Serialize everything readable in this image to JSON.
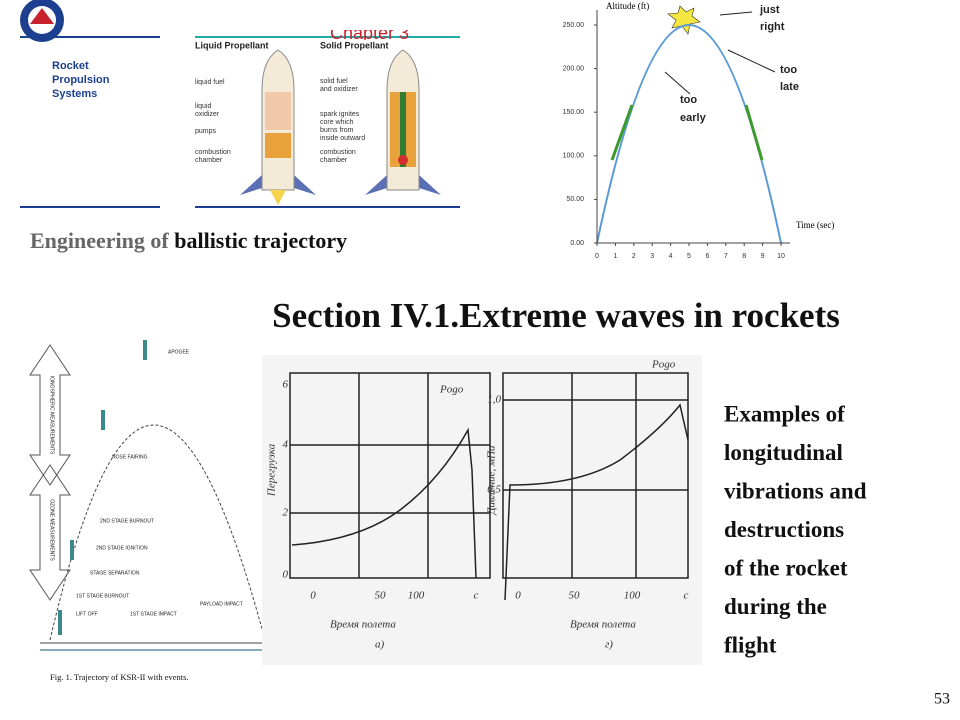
{
  "slide": {
    "caption": [
      "Engineering of",
      "ballistic trajectory"
    ],
    "heading": "Section IV.1.Extreme waves in rockets",
    "body_lines": [
      "Examples of",
      "longitudinal",
      "vibrations and",
      "destructions",
      "of the rocket",
      "during the",
      "flight"
    ],
    "page_number": "53"
  },
  "propulsion_image": {
    "title_lines": [
      "Rocket",
      "Propulsion",
      "Systems"
    ],
    "chapter": "Chapter 3",
    "liquid": {
      "title": "Liquid Propellant",
      "labels": [
        "liquid fuel",
        "liquid",
        "oxidizer",
        "pumps",
        "combustion",
        "chamber"
      ]
    },
    "solid": {
      "title": "Solid Propellant",
      "labels": [
        "solid fuel",
        "and oxidizer",
        "spark ignites",
        "core which",
        "burns from",
        "inside outward",
        "combustion",
        "chamber"
      ]
    }
  },
  "trajectory_chart": {
    "y_label": "Altitude (ft)",
    "x_label": "Time (sec)",
    "ylim": [
      0,
      250
    ],
    "xlim": [
      0,
      10
    ],
    "yticks": [
      {
        "value": 0,
        "label": "0.00"
      },
      {
        "value": 50,
        "label": "50.00"
      },
      {
        "value": 100,
        "label": "100.00"
      },
      {
        "value": 150,
        "label": "150.00"
      },
      {
        "value": 200,
        "label": "200.00"
      },
      {
        "value": 250,
        "label": "250.00"
      }
    ],
    "xticks": [
      0,
      1,
      2,
      3,
      4,
      5,
      6,
      7,
      8,
      9,
      10
    ],
    "annotations": [
      [
        "just",
        "right"
      ],
      [
        "too",
        "late"
      ],
      [
        "too",
        "early"
      ]
    ]
  },
  "ksr_figure": {
    "caption": "Fig. 1. Trajectory of KSR-II with events.",
    "events": [
      "APOGEE",
      "NOSE FAIRING",
      "2ND STAGE BURNOUT",
      "2ND STAGE IGNITION",
      "STAGE SEPARATION",
      "1ST STAGE BURNOUT",
      "LIFT OFF",
      "1ST STAGE IMPACT",
      "PAYLOAD IMPACT"
    ],
    "side_labels": [
      "IONOSPHERIC MEASUREMENTS",
      "OZONE MEASUREMENTS"
    ]
  },
  "pogo_plots": {
    "marker": "Pogo",
    "left": {
      "y_label": "Перегрузка",
      "x_label": "Время полета",
      "panel": "а)",
      "yticks": [
        "0",
        "2",
        "4",
        "6"
      ],
      "xticks": [
        "0",
        "50",
        "100",
        "с"
      ]
    },
    "right": {
      "y_label": "Давление, мПа",
      "x_label": "Время полета",
      "panel": "г)",
      "yticks": [
        "0,5",
        "1,0"
      ],
      "xticks": [
        "0",
        "50",
        "100",
        "с"
      ]
    }
  }
}
